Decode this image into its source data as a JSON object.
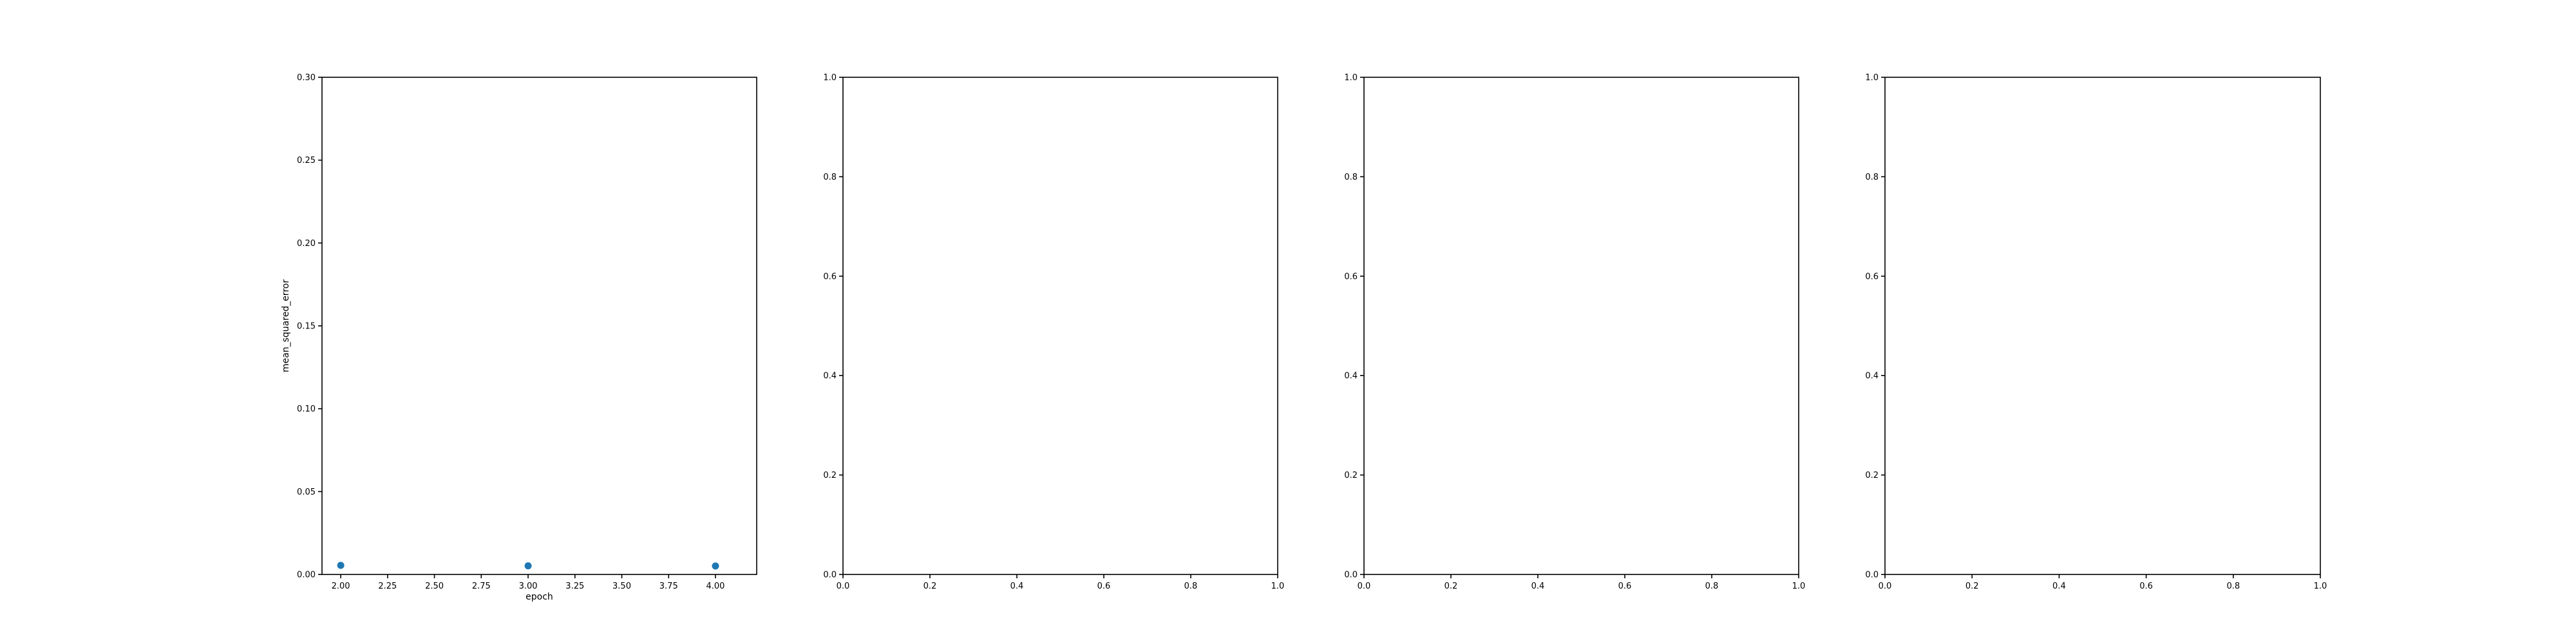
{
  "chart_data": [
    {
      "type": "scatter",
      "xlabel": "epoch",
      "ylabel": "mean_squared_error",
      "xlim": [
        1.9,
        4.22
      ],
      "ylim": [
        0.0,
        0.3
      ],
      "xticks": [
        "2.00",
        "2.25",
        "2.50",
        "2.75",
        "3.00",
        "3.25",
        "3.50",
        "3.75",
        "4.00"
      ],
      "yticks": [
        "0.00",
        "0.05",
        "0.10",
        "0.15",
        "0.20",
        "0.25",
        "0.30"
      ],
      "grid": false,
      "marker_color": "#1f77b4",
      "series": [
        {
          "x": [
            2,
            3,
            4
          ],
          "y": [
            0.0055,
            0.0052,
            0.0051
          ]
        }
      ]
    },
    {
      "type": "scatter",
      "xlabel": "",
      "ylabel": "",
      "xlim": [
        0,
        1
      ],
      "ylim": [
        0,
        1
      ],
      "xticks": [
        "0.0",
        "0.2",
        "0.4",
        "0.6",
        "0.8",
        "1.0"
      ],
      "yticks": [
        "0.0",
        "0.2",
        "0.4",
        "0.6",
        "0.8",
        "1.0"
      ],
      "grid": false,
      "series": []
    },
    {
      "type": "scatter",
      "xlabel": "",
      "ylabel": "",
      "xlim": [
        0,
        1
      ],
      "ylim": [
        0,
        1
      ],
      "xticks": [
        "0.0",
        "0.2",
        "0.4",
        "0.6",
        "0.8",
        "1.0"
      ],
      "yticks": [
        "0.0",
        "0.2",
        "0.4",
        "0.6",
        "0.8",
        "1.0"
      ],
      "grid": false,
      "series": []
    },
    {
      "type": "scatter",
      "xlabel": "",
      "ylabel": "",
      "xlim": [
        0,
        1
      ],
      "ylim": [
        0,
        1
      ],
      "xticks": [
        "0.0",
        "0.2",
        "0.4",
        "0.6",
        "0.8",
        "1.0"
      ],
      "yticks": [
        "0.0",
        "0.2",
        "0.4",
        "0.6",
        "0.8",
        "1.0"
      ],
      "grid": false,
      "series": []
    }
  ]
}
